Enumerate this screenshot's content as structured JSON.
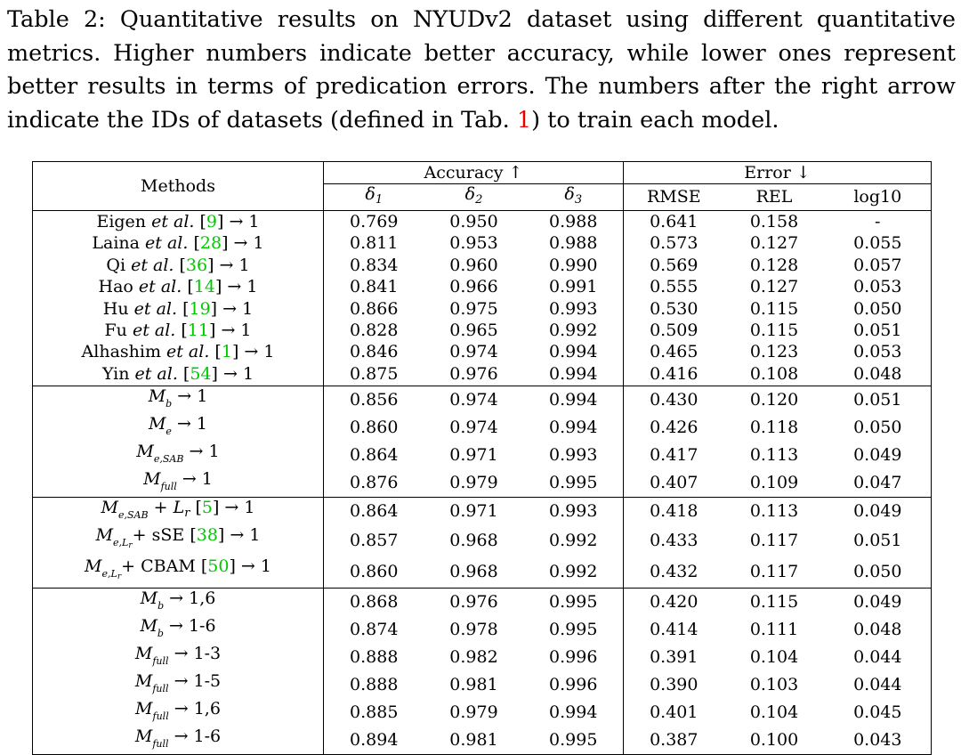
{
  "caption": {
    "label": "Table 2:",
    "text_before_ref": "Quantitative results on NYUDv2 dataset using different quantitative metrics. Higher numbers indicate better accuracy, while lower ones represent better results in terms of predication errors. The numbers after the right arrow indicate the IDs of datasets (defined in Tab. ",
    "ref": "1",
    "text_after_ref": ") to train each model."
  },
  "header": {
    "methods": "Methods",
    "accuracy": "Accuracy ↑",
    "error": "Error ↓",
    "delta": "δ",
    "d1_sub": "1",
    "d2_sub": "2",
    "d3_sub": "3",
    "rmse": "RMSE",
    "rel": "REL",
    "log10": "log10"
  },
  "colors": {
    "citation": "#00c800",
    "table_ref": "#e60000"
  },
  "groups": [
    {
      "rows": [
        {
          "pre": "Eigen ",
          "etal": "et al.",
          "cite": "9",
          "arrow": " → 1",
          "values": [
            "0.769",
            "0.950",
            "0.988",
            "0.641",
            "0.158",
            "-"
          ],
          "bold": []
        },
        {
          "pre": "Laina ",
          "etal": "et al.",
          "cite": "28",
          "arrow": " → 1",
          "values": [
            "0.811",
            "0.953",
            "0.988",
            "0.573",
            "0.127",
            "0.055"
          ],
          "bold": []
        },
        {
          "pre": "Qi ",
          "etal": "et al.",
          "cite": "36",
          "arrow": " → 1",
          "values": [
            "0.834",
            "0.960",
            "0.990",
            "0.569",
            "0.128",
            "0.057"
          ],
          "bold": []
        },
        {
          "pre": "Hao ",
          "etal": "et al.",
          "cite": "14",
          "arrow": " → 1",
          "values": [
            "0.841",
            "0.966",
            "0.991",
            "0.555",
            "0.127",
            "0.053"
          ],
          "bold": []
        },
        {
          "pre": "Hu ",
          "etal": "et al.",
          "cite": "19",
          "arrow": " → 1",
          "values": [
            "0.866",
            "0.975",
            "0.993",
            "0.530",
            "0.115",
            "0.050"
          ],
          "bold": []
        },
        {
          "pre": "Fu ",
          "etal": "et al.",
          "cite": "11",
          "arrow": " → 1",
          "values": [
            "0.828",
            "0.965",
            "0.992",
            "0.509",
            "0.115",
            "0.051"
          ],
          "bold": []
        },
        {
          "pre": "Alhashim ",
          "etal": "et al.",
          "cite": "1",
          "arrow": " → 1",
          "values": [
            "0.846",
            "0.974",
            "0.994",
            "0.465",
            "0.123",
            "0.053"
          ],
          "bold": []
        },
        {
          "pre": "Yin ",
          "etal": "et al.",
          "cite": "54",
          "arrow": " → 1",
          "values": [
            "0.875",
            "0.976",
            "0.994",
            "0.416",
            "0.108",
            "0.048"
          ],
          "bold": []
        }
      ]
    },
    {
      "rows": [
        {
          "m": "M",
          "sub": "b",
          "arrow": " → 1",
          "values": [
            "0.856",
            "0.974",
            "0.994",
            "0.430",
            "0.120",
            "0.051"
          ],
          "bold": []
        },
        {
          "m": "M",
          "sub": "e",
          "arrow": " → 1",
          "values": [
            "0.860",
            "0.974",
            "0.994",
            "0.426",
            "0.118",
            "0.050"
          ],
          "bold": []
        },
        {
          "m": "M",
          "sub": "e,SAB",
          "arrow": " → 1",
          "values": [
            "0.864",
            "0.971",
            "0.993",
            "0.417",
            "0.113",
            "0.049"
          ],
          "bold": []
        },
        {
          "m": "M",
          "sub": "full",
          "arrow": " → 1",
          "values": [
            "0.876",
            "0.979",
            "0.995",
            "0.407",
            "0.109",
            "0.047"
          ],
          "bold": []
        }
      ]
    },
    {
      "rows": [
        {
          "m": "M",
          "sub": "e,SAB",
          "plus": " + ",
          "lr": "L",
          "lrsub": "r",
          "cite": "5",
          "arrow": " → 1",
          "values": [
            "0.864",
            "0.971",
            "0.993",
            "0.418",
            "0.113",
            "0.049"
          ],
          "bold": []
        },
        {
          "m": "M",
          "sub": "e,",
          "subL": "L",
          "subr": "r",
          "plus": "+ sSE ",
          "cite": "38",
          "arrow": " → 1",
          "values": [
            "0.857",
            "0.968",
            "0.992",
            "0.433",
            "0.117",
            "0.051"
          ],
          "bold": []
        },
        {
          "m": "M",
          "sub": "e,",
          "subL": "L",
          "subr": "r",
          "plus": "+ CBAM ",
          "cite": "50",
          "arrow": " → 1",
          "values": [
            "0.860",
            "0.968",
            "0.992",
            "0.432",
            "0.117",
            "0.050"
          ],
          "bold": []
        }
      ]
    },
    {
      "rows": [
        {
          "m": "M",
          "sub": "b",
          "arrow": " → 1,6",
          "values": [
            "0.868",
            "0.976",
            "0.995",
            "0.420",
            "0.115",
            "0.049"
          ],
          "bold": []
        },
        {
          "m": "M",
          "sub": "b",
          "arrow": " → 1-6",
          "values": [
            "0.874",
            "0.978",
            "0.995",
            "0.414",
            "0.111",
            "0.048"
          ],
          "bold": []
        },
        {
          "m": "M",
          "sub": "full",
          "arrow": " → 1-3",
          "values": [
            "0.888",
            "0.982",
            "0.996",
            "0.391",
            "0.104",
            "0.044"
          ],
          "bold": [
            1,
            2
          ]
        },
        {
          "m": "M",
          "sub": "full",
          "arrow": " → 1-5",
          "values": [
            "0.888",
            "0.981",
            "0.996",
            "0.390",
            "0.103",
            "0.044"
          ],
          "bold": [
            2
          ]
        },
        {
          "m": "M",
          "sub": "full",
          "arrow": " → 1,6",
          "values": [
            "0.885",
            "0.979",
            "0.994",
            "0.401",
            "0.104",
            "0.045"
          ],
          "bold": []
        },
        {
          "m": "M",
          "sub": "full",
          "arrow": " → 1-6",
          "values": [
            "0.894",
            "0.981",
            "0.995",
            "0.387",
            "0.100",
            "0.043"
          ],
          "bold": [
            0,
            3,
            4,
            5
          ]
        }
      ]
    }
  ]
}
